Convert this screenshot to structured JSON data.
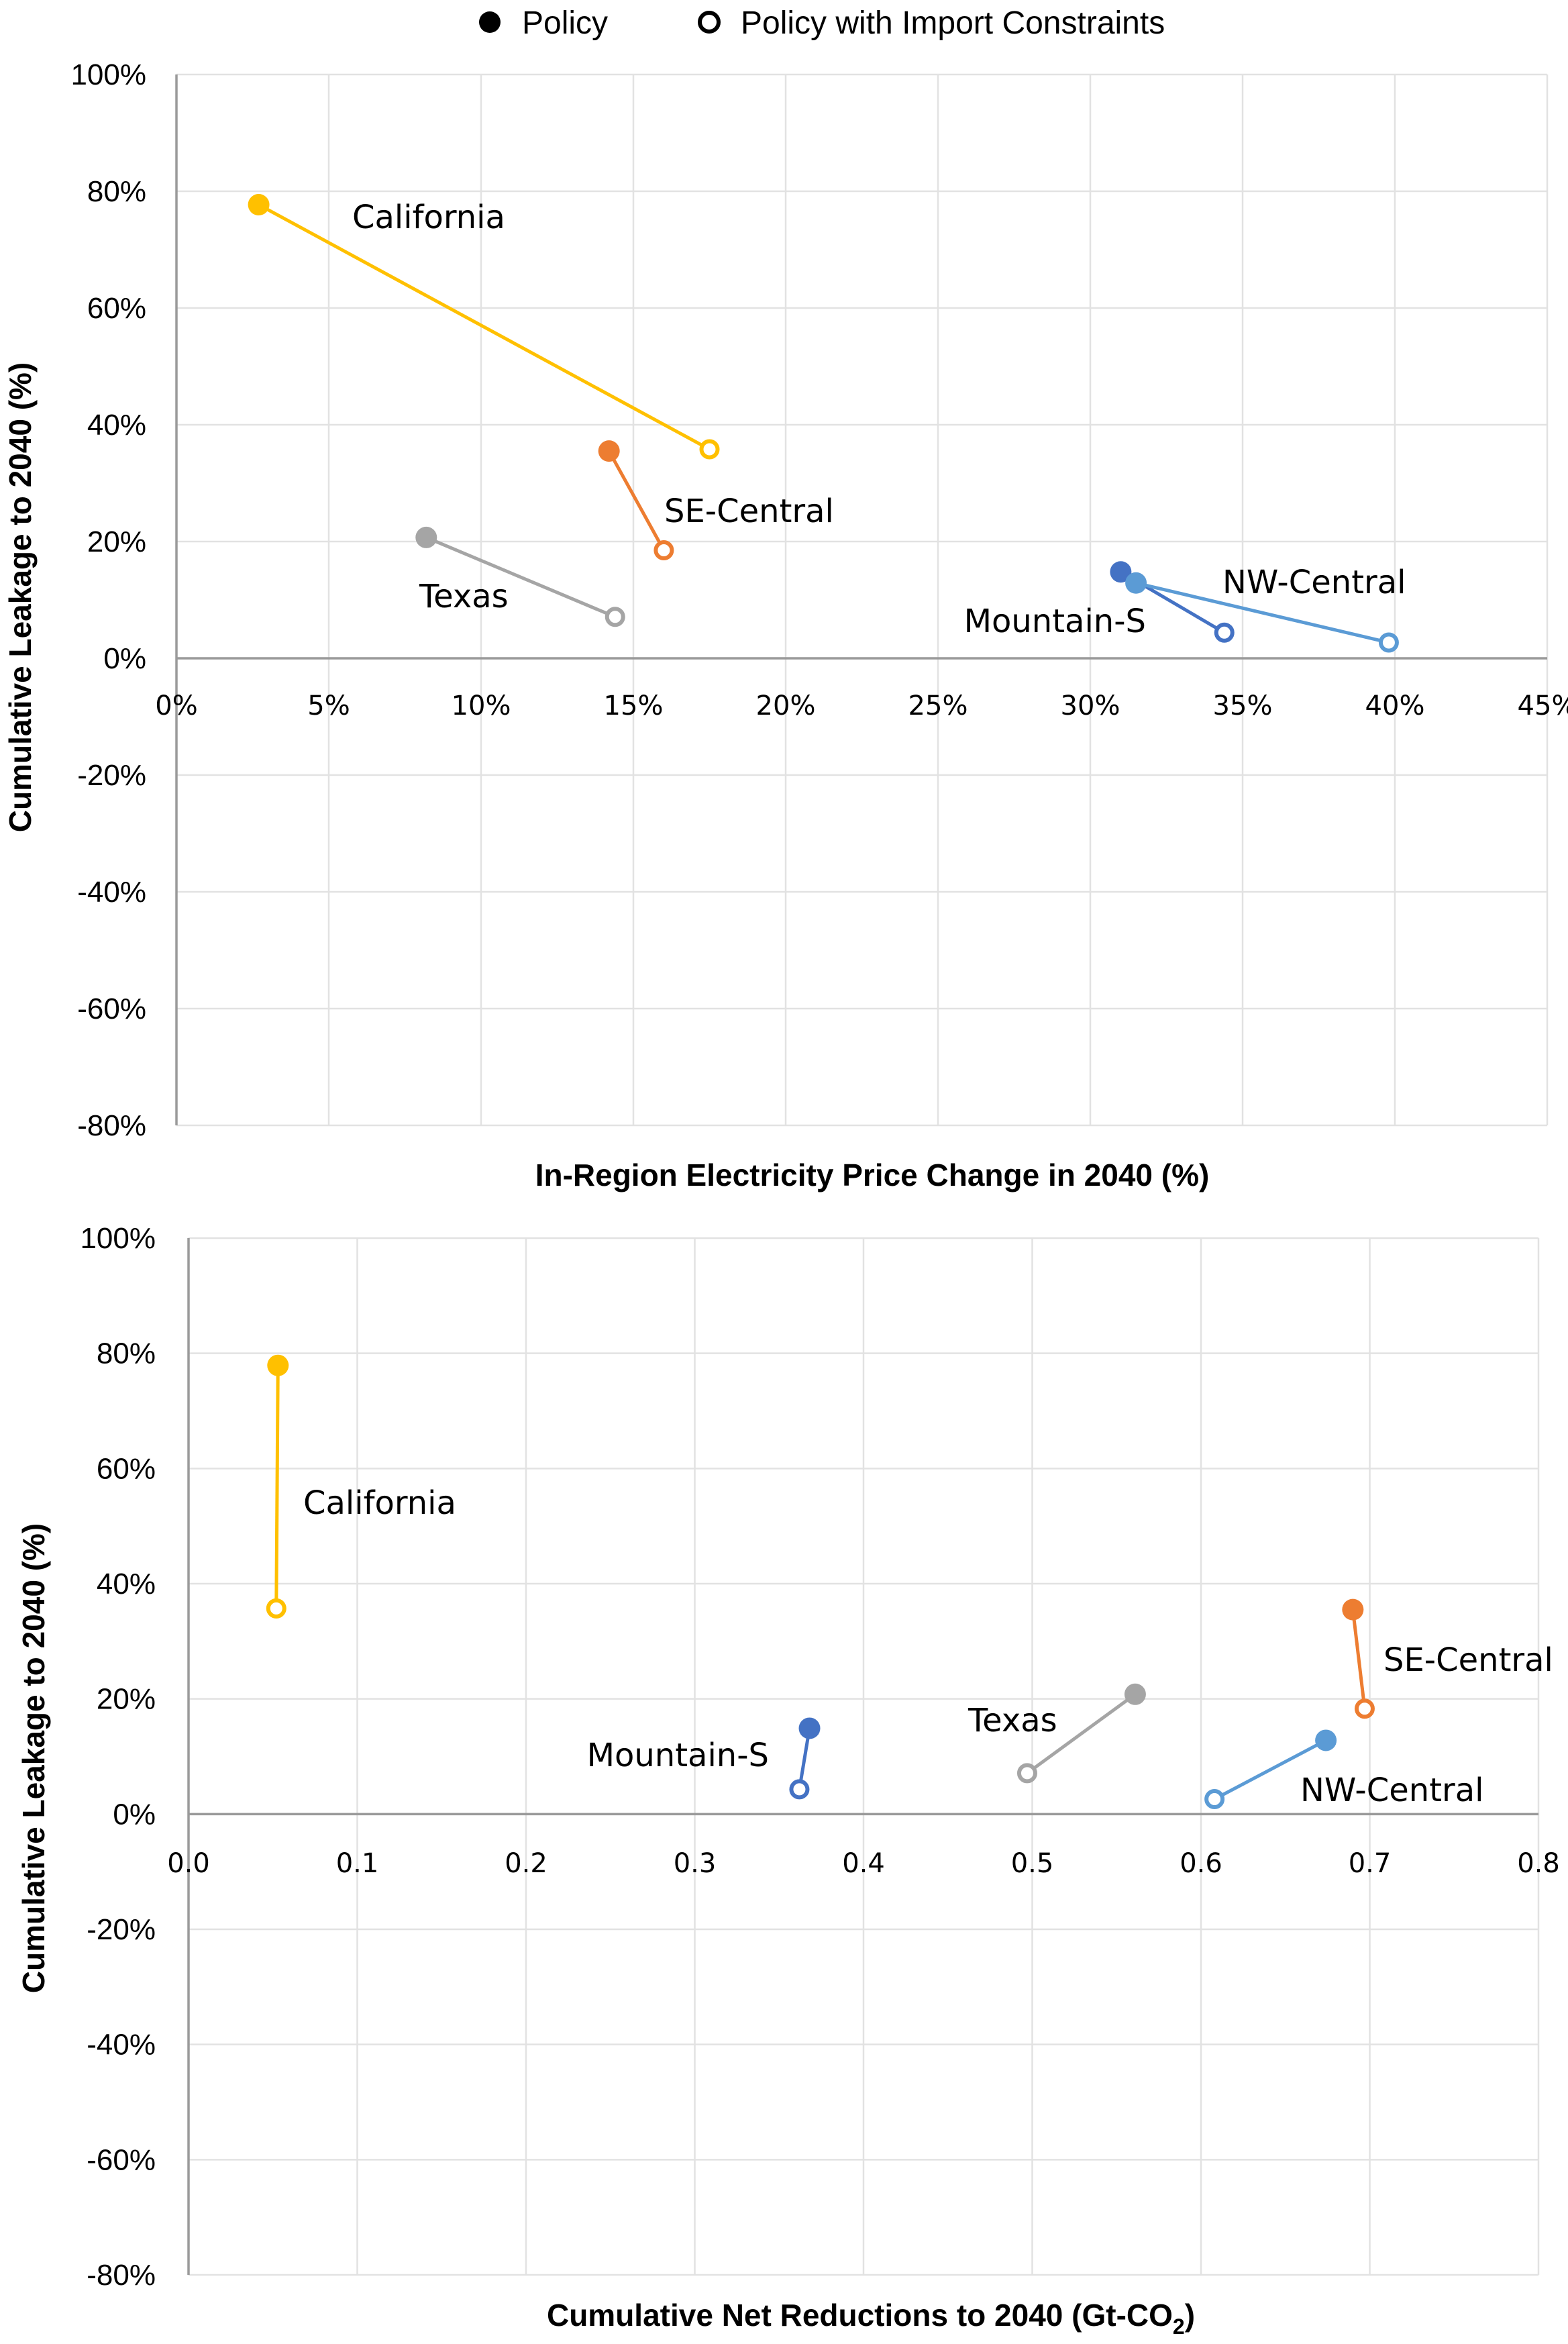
{
  "legend": {
    "items": [
      {
        "label": "Policy",
        "marker": "filled-circle"
      },
      {
        "label": "Policy with Import Constraints",
        "marker": "open-circle"
      }
    ]
  },
  "chart_data": [
    {
      "type": "scatter",
      "title": "",
      "xlabel": "In-Region Electricity Price Change in 2040 (%)",
      "ylabel": "Cumulative Leakage to 2040 (%)",
      "xlim": [
        0,
        45
      ],
      "ylim": [
        -80,
        100
      ],
      "xticks": [
        "0%",
        "5%",
        "10%",
        "15%",
        "20%",
        "25%",
        "30%",
        "35%",
        "40%",
        "45%"
      ],
      "xtick_values": [
        0,
        5,
        10,
        15,
        20,
        25,
        30,
        35,
        40,
        45
      ],
      "yticks": [
        "100%",
        "80%",
        "60%",
        "40%",
        "20%",
        "0%",
        "-20%",
        "-40%",
        "-60%",
        "-80%"
      ],
      "ytick_values": [
        100,
        80,
        60,
        40,
        20,
        0,
        -20,
        -40,
        -60,
        -80
      ],
      "grid": true,
      "legend_position": "top-center",
      "series": [
        {
          "name": "California",
          "color": "#FFC000",
          "policy": {
            "x": 2.7,
            "y": 77.7
          },
          "import_constraints": {
            "x": 17.5,
            "y": 35.8
          },
          "label_anchor": "right-of-policy"
        },
        {
          "name": "SE-Central",
          "color": "#ED7D31",
          "policy": {
            "x": 14.2,
            "y": 35.5
          },
          "import_constraints": {
            "x": 16.0,
            "y": 18.5
          },
          "label_anchor": "right"
        },
        {
          "name": "Texas",
          "color": "#A5A5A5",
          "policy": {
            "x": 8.2,
            "y": 20.7
          },
          "import_constraints": {
            "x": 14.4,
            "y": 7.1
          },
          "label_anchor": "below"
        },
        {
          "name": "Mountain-S",
          "color": "#4472C4",
          "policy": {
            "x": 31.0,
            "y": 14.8
          },
          "import_constraints": {
            "x": 34.4,
            "y": 4.4
          },
          "label_anchor": "left"
        },
        {
          "name": "NW-Central",
          "color": "#5B9BD5",
          "policy": {
            "x": 31.5,
            "y": 12.9
          },
          "import_constraints": {
            "x": 39.8,
            "y": 2.7
          },
          "label_anchor": "above"
        }
      ]
    },
    {
      "type": "scatter",
      "title": "",
      "xlabel": "Cumulative Net Reductions to 2040 (Gt-CO",
      "xlabel_subscript": "2",
      "xlabel_suffix": ")",
      "ylabel": "Cumulative Leakage to 2040 (%)",
      "xlim": [
        0,
        0.8
      ],
      "ylim": [
        -80,
        100
      ],
      "xticks": [
        "0.0",
        "0.1",
        "0.2",
        "0.3",
        "0.4",
        "0.5",
        "0.6",
        "0.7",
        "0.8"
      ],
      "xtick_values": [
        0,
        0.1,
        0.2,
        0.3,
        0.4,
        0.5,
        0.6,
        0.7,
        0.8
      ],
      "yticks": [
        "100%",
        "80%",
        "60%",
        "40%",
        "20%",
        "0%",
        "-20%",
        "-40%",
        "-60%",
        "-80%"
      ],
      "ytick_values": [
        100,
        80,
        60,
        40,
        20,
        0,
        -20,
        -40,
        -60,
        -80
      ],
      "grid": true,
      "series": [
        {
          "name": "California",
          "color": "#FFC000",
          "policy": {
            "x": 0.053,
            "y": 77.9
          },
          "import_constraints": {
            "x": 0.052,
            "y": 35.7
          }
        },
        {
          "name": "Mountain-S",
          "color": "#4472C4",
          "policy": {
            "x": 0.368,
            "y": 14.9
          },
          "import_constraints": {
            "x": 0.362,
            "y": 4.3
          }
        },
        {
          "name": "Texas",
          "color": "#A5A5A5",
          "policy": {
            "x": 0.561,
            "y": 20.8
          },
          "import_constraints": {
            "x": 0.497,
            "y": 7.1
          }
        },
        {
          "name": "SE-Central",
          "color": "#ED7D31",
          "policy": {
            "x": 0.69,
            "y": 35.5
          },
          "import_constraints": {
            "x": 0.697,
            "y": 18.3
          }
        },
        {
          "name": "NW-Central",
          "color": "#5B9BD5",
          "policy": {
            "x": 0.674,
            "y": 12.8
          },
          "import_constraints": {
            "x": 0.608,
            "y": 2.6
          }
        }
      ]
    }
  ]
}
